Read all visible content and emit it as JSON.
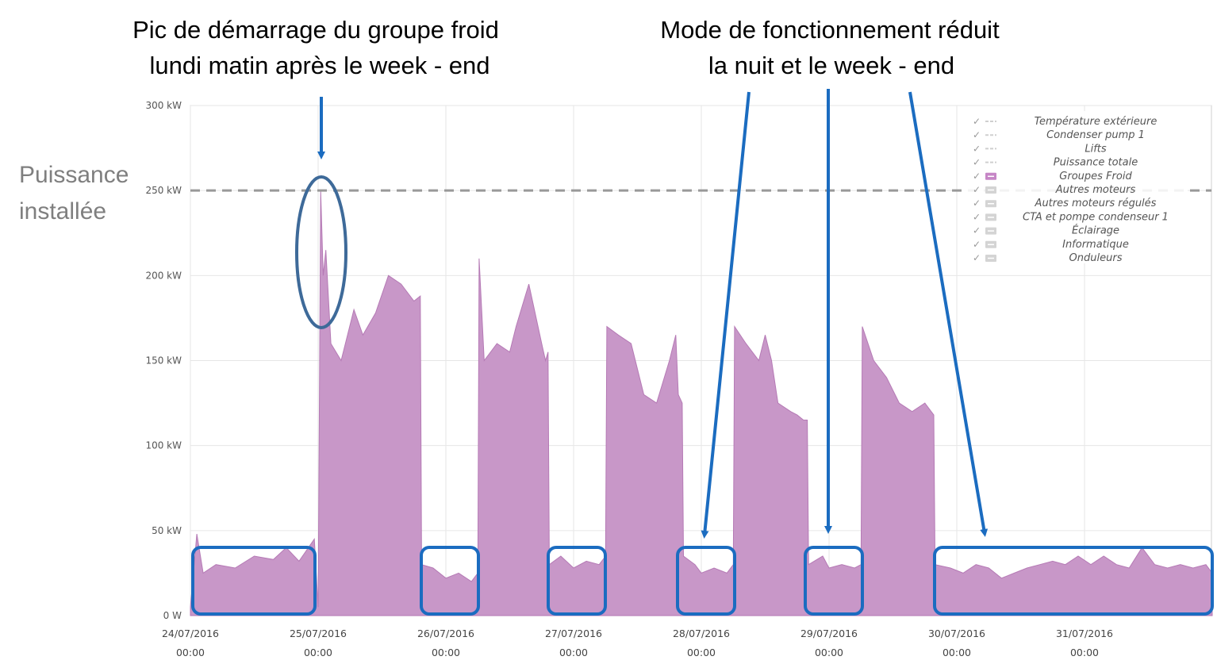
{
  "annotations": {
    "peak_line1": "Pic de démarrage du groupe froid",
    "peak_line2": "lundi matin après le week - end",
    "reduced_line1": "Mode de fonctionnement réduit",
    "reduced_line2": "la nuit et le week - end",
    "installed_line1": "Puissance",
    "installed_line2": "installée"
  },
  "colors": {
    "series": "#c897c8",
    "series_stroke": "#b57ab5",
    "annotation_blue": "#1b6cc0",
    "ellipse": "#3e6a99",
    "threshold": "#999999"
  },
  "legend": [
    {
      "label": "Température extérieure",
      "checked": false,
      "style": "dash"
    },
    {
      "label": "Condenser pump 1",
      "checked": false,
      "style": "dash"
    },
    {
      "label": "Lifts",
      "checked": false,
      "style": "dash"
    },
    {
      "label": "Puissance totale",
      "checked": false,
      "style": "dash"
    },
    {
      "label": "Groupes Froid",
      "checked": true,
      "style": "box"
    },
    {
      "label": "Autres moteurs",
      "checked": false,
      "style": "box"
    },
    {
      "label": "Autres moteurs régulés",
      "checked": false,
      "style": "box"
    },
    {
      "label": "CTA et pompe condenseur 1",
      "checked": false,
      "style": "box"
    },
    {
      "label": "Éclairage",
      "checked": false,
      "style": "box"
    },
    {
      "label": "Informatique",
      "checked": false,
      "style": "box"
    },
    {
      "label": "Onduleurs",
      "checked": false,
      "style": "box"
    }
  ],
  "chart_data": {
    "type": "area",
    "series_name": "Groupes Froid",
    "unit": "kW",
    "ylim": [
      0,
      300
    ],
    "yticks": [
      {
        "value": 0,
        "label": "0 W"
      },
      {
        "value": 50,
        "label": "50 kW"
      },
      {
        "value": 100,
        "label": "100 kW"
      },
      {
        "value": 150,
        "label": "150 kW"
      },
      {
        "value": 200,
        "label": "200 kW"
      },
      {
        "value": 250,
        "label": "250 kW"
      },
      {
        "value": 300,
        "label": "300 kW"
      }
    ],
    "xlim_days": [
      0,
      8.0
    ],
    "xticks": [
      {
        "day": 0,
        "date": "24/07/2016",
        "time": "00:00"
      },
      {
        "day": 1,
        "date": "25/07/2016",
        "time": "00:00"
      },
      {
        "day": 2,
        "date": "26/07/2016",
        "time": "00:00"
      },
      {
        "day": 3,
        "date": "27/07/2016",
        "time": "00:00"
      },
      {
        "day": 4,
        "date": "28/07/2016",
        "time": "00:00"
      },
      {
        "day": 5,
        "date": "29/07/2016",
        "time": "00:00"
      },
      {
        "day": 6,
        "date": "30/07/2016",
        "time": "00:00"
      },
      {
        "day": 7,
        "date": "31/07/2016",
        "time": "00:00"
      }
    ],
    "threshold": {
      "value": 250,
      "label": "Puissance installée"
    },
    "points": [
      [
        0.0,
        5
      ],
      [
        0.05,
        48
      ],
      [
        0.1,
        25
      ],
      [
        0.2,
        30
      ],
      [
        0.35,
        28
      ],
      [
        0.5,
        35
      ],
      [
        0.65,
        33
      ],
      [
        0.75,
        40
      ],
      [
        0.85,
        32
      ],
      [
        0.97,
        45
      ],
      [
        1.0,
        5
      ],
      [
        1.02,
        250
      ],
      [
        1.04,
        200
      ],
      [
        1.06,
        215
      ],
      [
        1.1,
        160
      ],
      [
        1.18,
        150
      ],
      [
        1.28,
        180
      ],
      [
        1.35,
        165
      ],
      [
        1.45,
        178
      ],
      [
        1.55,
        200
      ],
      [
        1.65,
        195
      ],
      [
        1.75,
        185
      ],
      [
        1.8,
        188
      ],
      [
        1.81,
        30
      ],
      [
        1.9,
        28
      ],
      [
        2.0,
        22
      ],
      [
        2.1,
        25
      ],
      [
        2.2,
        20
      ],
      [
        2.25,
        25
      ],
      [
        2.26,
        210
      ],
      [
        2.3,
        150
      ],
      [
        2.4,
        160
      ],
      [
        2.5,
        155
      ],
      [
        2.55,
        170
      ],
      [
        2.65,
        195
      ],
      [
        2.75,
        160
      ],
      [
        2.78,
        150
      ],
      [
        2.8,
        155
      ],
      [
        2.81,
        30
      ],
      [
        2.9,
        35
      ],
      [
        3.0,
        28
      ],
      [
        3.1,
        32
      ],
      [
        3.2,
        30
      ],
      [
        3.25,
        35
      ],
      [
        3.26,
        170
      ],
      [
        3.35,
        165
      ],
      [
        3.45,
        160
      ],
      [
        3.55,
        130
      ],
      [
        3.65,
        125
      ],
      [
        3.75,
        150
      ],
      [
        3.8,
        165
      ],
      [
        3.82,
        130
      ],
      [
        3.85,
        125
      ],
      [
        3.86,
        35
      ],
      [
        3.95,
        30
      ],
      [
        4.0,
        25
      ],
      [
        4.1,
        28
      ],
      [
        4.2,
        25
      ],
      [
        4.25,
        30
      ],
      [
        4.26,
        170
      ],
      [
        4.35,
        160
      ],
      [
        4.45,
        150
      ],
      [
        4.5,
        165
      ],
      [
        4.55,
        150
      ],
      [
        4.6,
        125
      ],
      [
        4.7,
        120
      ],
      [
        4.75,
        118
      ],
      [
        4.8,
        115
      ],
      [
        4.83,
        115
      ],
      [
        4.84,
        30
      ],
      [
        4.95,
        35
      ],
      [
        5.0,
        28
      ],
      [
        5.1,
        30
      ],
      [
        5.2,
        28
      ],
      [
        5.25,
        30
      ],
      [
        5.26,
        170
      ],
      [
        5.35,
        150
      ],
      [
        5.45,
        140
      ],
      [
        5.55,
        125
      ],
      [
        5.65,
        120
      ],
      [
        5.75,
        125
      ],
      [
        5.8,
        120
      ],
      [
        5.82,
        118
      ],
      [
        5.83,
        30
      ],
      [
        5.95,
        28
      ],
      [
        6.05,
        25
      ],
      [
        6.15,
        30
      ],
      [
        6.25,
        28
      ],
      [
        6.35,
        22
      ],
      [
        6.45,
        25
      ],
      [
        6.55,
        28
      ],
      [
        6.65,
        30
      ],
      [
        6.75,
        32
      ],
      [
        6.85,
        30
      ],
      [
        6.95,
        35
      ],
      [
        7.05,
        30
      ],
      [
        7.15,
        35
      ],
      [
        7.25,
        30
      ],
      [
        7.35,
        28
      ],
      [
        7.45,
        40
      ],
      [
        7.55,
        30
      ],
      [
        7.65,
        28
      ],
      [
        7.75,
        30
      ],
      [
        7.85,
        28
      ],
      [
        7.95,
        30
      ],
      [
        8.0,
        25
      ]
    ]
  }
}
